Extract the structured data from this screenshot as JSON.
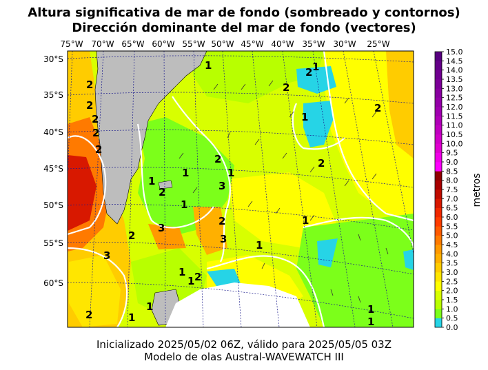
{
  "title": {
    "line1": "Altura significativa de mar de fondo (sombreado y contornos)",
    "line2": "Dirección dominante del mar de fondo (vectores)"
  },
  "footer": {
    "line1": "Inicializado 2025/05/02 06Z, válido para 2025/05/05 03Z",
    "line2": "Modelo de olas Austral-WAVEWATCH III"
  },
  "map": {
    "longitude_labels": [
      "75°W",
      "70°W",
      "65°W",
      "60°W",
      "55°W",
      "50°W",
      "45°W",
      "40°W",
      "35°W",
      "30°W",
      "25°W"
    ],
    "latitude_labels": [
      "30°S",
      "35°S",
      "40°S",
      "45°S",
      "50°S",
      "55°S",
      "60°S"
    ],
    "contour_labels": [
      "1",
      "2",
      "3"
    ],
    "colors": {
      "land": "#bdbdbd",
      "ice": "#ffffff",
      "graticule": "#1a1a8c",
      "contour": "#ffffff"
    }
  },
  "colorbar": {
    "label": "metros",
    "ticks": [
      "0.0",
      "0.5",
      "1.0",
      "1.5",
      "2.0",
      "2.5",
      "3.0",
      "3.5",
      "4.0",
      "4.5",
      "5.0",
      "5.5",
      "6.0",
      "6.5",
      "7.0",
      "7.5",
      "8.0",
      "8.5",
      "9.0",
      "9.5",
      "10.0",
      "10.5",
      "11.0",
      "11.5",
      "12.0",
      "12.5",
      "13.0",
      "13.5",
      "14.0",
      "14.5",
      "15.0"
    ],
    "colors": [
      "#26d4e6",
      "#7cff1a",
      "#b8ff00",
      "#d8ff00",
      "#ffff00",
      "#ffe600",
      "#ffcc00",
      "#ffb000",
      "#ff9900",
      "#ff7a00",
      "#ff5a00",
      "#ff3c00",
      "#f02800",
      "#d81800",
      "#c00c00",
      "#a80000",
      "#900000",
      "#ff00ff",
      "#f000e8",
      "#e000d0",
      "#d000c8",
      "#c000c0",
      "#b000b8",
      "#a000b0",
      "#9400a8",
      "#8800a0",
      "#7c0098",
      "#700090",
      "#640088",
      "#580080"
    ]
  }
}
